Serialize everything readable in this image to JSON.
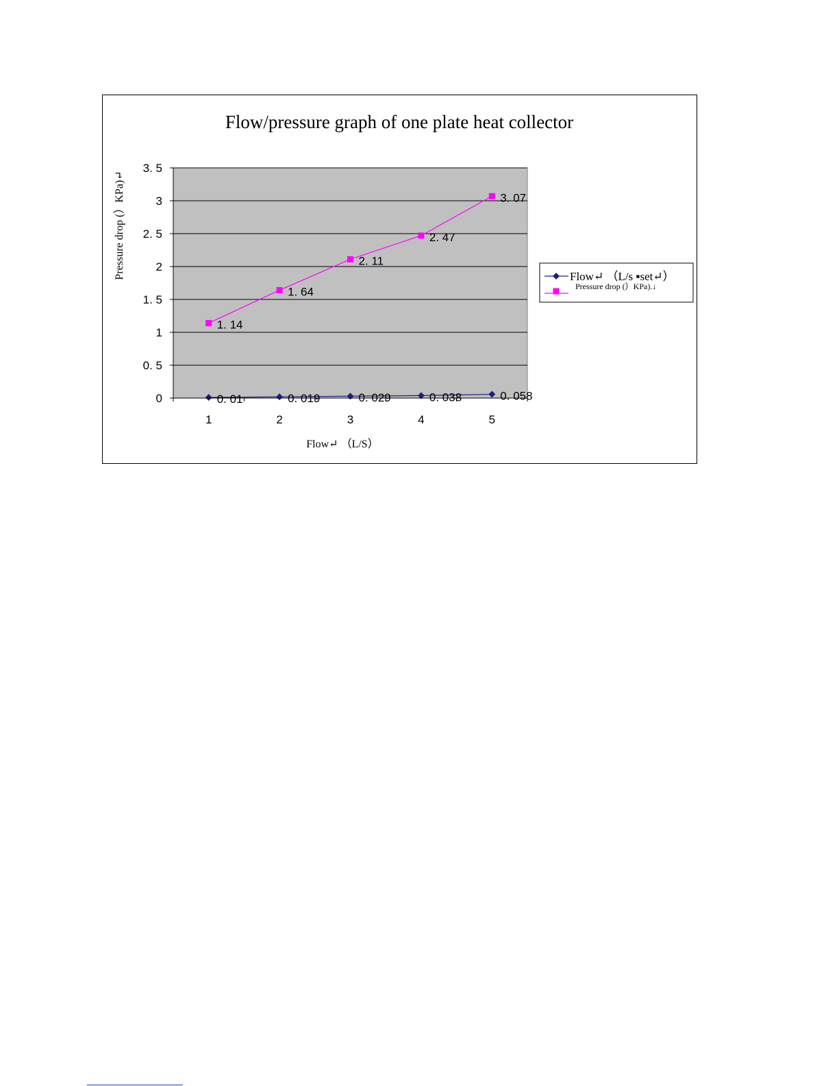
{
  "chart_data": {
    "type": "line",
    "title": "Flow/pressure graph of one plate heat collector",
    "xlabel": "Flow↵ （L/S）",
    "ylabel": "Pressure drop (）KPa)↵",
    "categories": [
      "1",
      "2",
      "3",
      "4",
      "5"
    ],
    "ylim": [
      0,
      3.5
    ],
    "yticks": [
      "0",
      "0. 5",
      "1",
      "1. 5",
      "2",
      "2. 5",
      "3",
      "3. 5"
    ],
    "ytick_values": [
      0,
      0.5,
      1,
      1.5,
      2,
      2.5,
      3,
      3.5
    ],
    "grid": true,
    "legend_position": "right",
    "series": [
      {
        "name": "Flow↵ （L/s ▪set↵）",
        "values": [
          0.01,
          0.019,
          0.029,
          0.038,
          0.058
        ],
        "labels": [
          "0. 01",
          "0. 019",
          "0. 029",
          "0. 038",
          "0. 058"
        ],
        "color": "#1f1f7a",
        "marker": "diamond"
      },
      {
        "name": "Pressure drop (）KPa).↓",
        "values": [
          1.14,
          1.64,
          2.11,
          2.47,
          3.07
        ],
        "labels": [
          "1. 14",
          "1. 64",
          "2. 11",
          "2. 47",
          "3. 07"
        ],
        "color": "#ff00ff",
        "marker": "square"
      }
    ],
    "plot_background": "#c0c0c0"
  }
}
